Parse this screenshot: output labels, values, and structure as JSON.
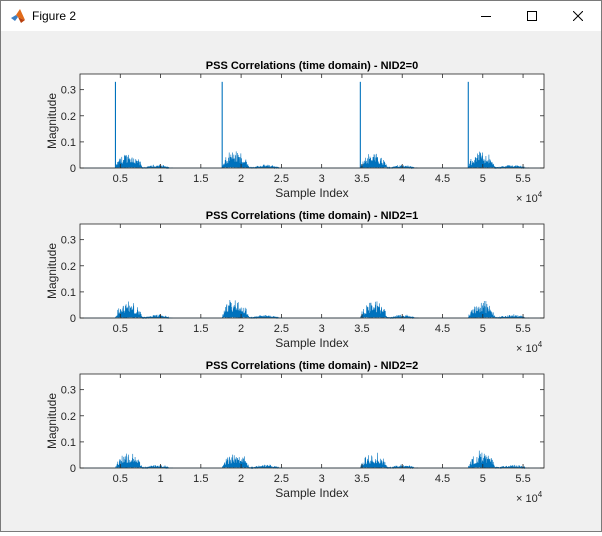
{
  "window": {
    "title": "Figure 2",
    "icons": {
      "app": "matlab-icon",
      "minimize": "minimize-icon",
      "maximize": "maximize-icon",
      "close": "close-icon"
    }
  },
  "colors": {
    "line": "#0072bd",
    "axes_bg": "#ffffff",
    "figure_bg": "#f0f0f0",
    "axis": "#262626"
  },
  "chart_data": [
    {
      "type": "line",
      "title": "PSS Correlations (time domain) - NID2=0",
      "xlabel": "Sample Index",
      "ylabel": "Magnitude",
      "xlim": [
        0,
        57600
      ],
      "ylim": [
        0,
        0.36
      ],
      "xticks": [
        5000,
        10000,
        15000,
        20000,
        25000,
        30000,
        35000,
        40000,
        45000,
        50000,
        55000
      ],
      "xticklabels": [
        "0.5",
        "1",
        "1.5",
        "2",
        "2.5",
        "3",
        "3.5",
        "4",
        "4.5",
        "5",
        "5.5"
      ],
      "yticks": [
        0,
        0.1,
        0.2,
        0.3
      ],
      "yticklabels": [
        "0",
        "0.1",
        "0.2",
        "0.3"
      ],
      "x_exponent": "× 10",
      "x_exponent_power": "4",
      "grid": false,
      "spikes": [
        {
          "x": 4400,
          "y": 0.33
        },
        {
          "x": 17650,
          "y": 0.33
        },
        {
          "x": 34800,
          "y": 0.33
        },
        {
          "x": 48200,
          "y": 0.33
        }
      ],
      "bursts": [
        {
          "x_start": 4400,
          "x_end": 8200,
          "peak": 0.07
        },
        {
          "x_start": 8200,
          "x_end": 11500,
          "peak": 0.015
        },
        {
          "x_start": 17650,
          "x_end": 21500,
          "peak": 0.075
        },
        {
          "x_start": 21500,
          "x_end": 25200,
          "peak": 0.015
        },
        {
          "x_start": 34800,
          "x_end": 38600,
          "peak": 0.07
        },
        {
          "x_start": 38600,
          "x_end": 42000,
          "peak": 0.015
        },
        {
          "x_start": 48200,
          "x_end": 52000,
          "peak": 0.075
        },
        {
          "x_start": 52000,
          "x_end": 55800,
          "peak": 0.015
        }
      ]
    },
    {
      "type": "line",
      "title": "PSS Correlations (time domain) - NID2=1",
      "xlabel": "Sample Index",
      "ylabel": "Magnitude",
      "xlim": [
        0,
        57600
      ],
      "ylim": [
        0,
        0.36
      ],
      "xticks": [
        5000,
        10000,
        15000,
        20000,
        25000,
        30000,
        35000,
        40000,
        45000,
        50000,
        55000
      ],
      "xticklabels": [
        "0.5",
        "1",
        "1.5",
        "2",
        "2.5",
        "3",
        "3.5",
        "4",
        "4.5",
        "5",
        "5.5"
      ],
      "yticks": [
        0,
        0.1,
        0.2,
        0.3
      ],
      "yticklabels": [
        "0",
        "0.1",
        "0.2",
        "0.3"
      ],
      "x_exponent": "× 10",
      "x_exponent_power": "4",
      "grid": false,
      "spikes": [],
      "bursts": [
        {
          "x_start": 4400,
          "x_end": 8200,
          "peak": 0.075
        },
        {
          "x_start": 8200,
          "x_end": 11500,
          "peak": 0.015
        },
        {
          "x_start": 17650,
          "x_end": 21500,
          "peak": 0.085
        },
        {
          "x_start": 21500,
          "x_end": 25200,
          "peak": 0.015
        },
        {
          "x_start": 34800,
          "x_end": 38600,
          "peak": 0.08
        },
        {
          "x_start": 38600,
          "x_end": 42000,
          "peak": 0.015
        },
        {
          "x_start": 48200,
          "x_end": 52000,
          "peak": 0.08
        },
        {
          "x_start": 52000,
          "x_end": 55800,
          "peak": 0.015
        }
      ]
    },
    {
      "type": "line",
      "title": "PSS Correlations (time domain) - NID2=2",
      "xlabel": "Sample Index",
      "ylabel": "Magnitude",
      "xlim": [
        0,
        57600
      ],
      "ylim": [
        0,
        0.36
      ],
      "xticks": [
        5000,
        10000,
        15000,
        20000,
        25000,
        30000,
        35000,
        40000,
        45000,
        50000,
        55000
      ],
      "xticklabels": [
        "0.5",
        "1",
        "1.5",
        "2",
        "2.5",
        "3",
        "3.5",
        "4",
        "4.5",
        "5",
        "5.5"
      ],
      "yticks": [
        0,
        0.1,
        0.2,
        0.3
      ],
      "yticklabels": [
        "0",
        "0.1",
        "0.2",
        "0.3"
      ],
      "x_exponent": "× 10",
      "x_exponent_power": "4",
      "grid": false,
      "spikes": [],
      "bursts": [
        {
          "x_start": 4400,
          "x_end": 8200,
          "peak": 0.07
        },
        {
          "x_start": 8200,
          "x_end": 11500,
          "peak": 0.015
        },
        {
          "x_start": 17650,
          "x_end": 21500,
          "peak": 0.07
        },
        {
          "x_start": 21500,
          "x_end": 25200,
          "peak": 0.015
        },
        {
          "x_start": 34800,
          "x_end": 38600,
          "peak": 0.07
        },
        {
          "x_start": 38600,
          "x_end": 42000,
          "peak": 0.015
        },
        {
          "x_start": 48200,
          "x_end": 52000,
          "peak": 0.075
        },
        {
          "x_start": 52000,
          "x_end": 55800,
          "peak": 0.015
        }
      ]
    }
  ]
}
